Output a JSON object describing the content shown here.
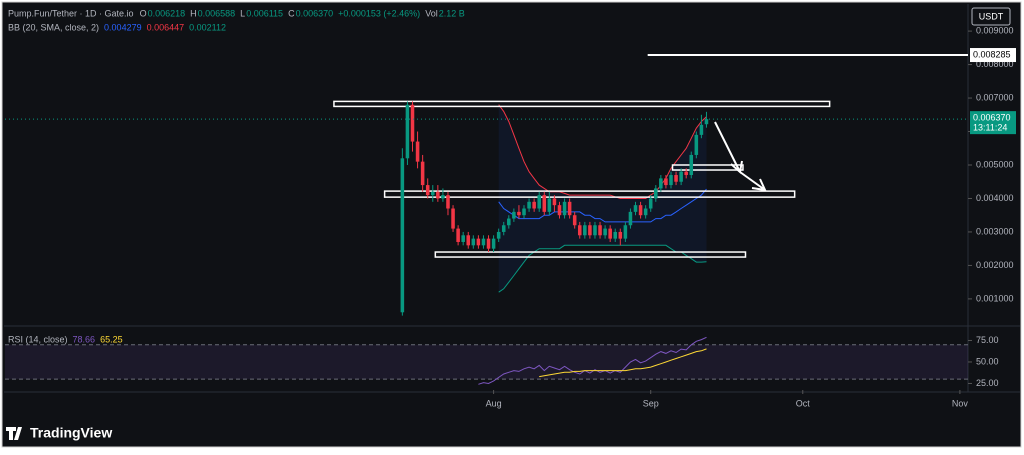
{
  "chart_data": {
    "type": "candlestick",
    "header": {
      "symbol": "Pump.Fun/Tether · 1D · Gate.io",
      "ohlc": [
        {
          "key": "O",
          "value": "0.006218"
        },
        {
          "key": "H",
          "value": "0.006588"
        },
        {
          "key": "L",
          "value": "0.006115"
        },
        {
          "key": "C",
          "value": "0.006370"
        }
      ],
      "change": "+0.000153 (+2.46%)",
      "vol_key": "Vol",
      "vol": "2.12 B",
      "bb_title": "BB (20, SMA, close, 2)",
      "rsi_title": "RSI (14, close)"
    },
    "currency": "USDT",
    "last_price_label": "0.006370",
    "countdown": "13:11:24",
    "brand": "TradingView",
    "colors": {
      "up": "#089981",
      "down": "#f23645",
      "upper": "#f23645",
      "basis": "#2962ff",
      "lower": "#089981",
      "rsi": "#7e57c2",
      "rsi_ma": "#fdd835"
    },
    "xlim": [
      -78.4,
      111.6
    ],
    "xticks": [
      {
        "value": 18,
        "label": "Aug"
      },
      {
        "value": 49,
        "label": "Sep"
      },
      {
        "value": 79,
        "label": "Oct"
      },
      {
        "value": 110,
        "label": "Nov"
      }
    ],
    "ylim": [
      0.00022,
      0.00969
    ],
    "yticks": [
      {
        "value": 0.001,
        "label": "0.001000"
      },
      {
        "value": 0.002,
        "label": "0.002000"
      },
      {
        "value": 0.003,
        "label": "0.003000"
      },
      {
        "value": 0.004,
        "label": "0.004000"
      },
      {
        "value": 0.005,
        "label": "0.005000"
      },
      {
        "value": 0.006,
        "label": "0.006000"
      },
      {
        "value": 0.007,
        "label": "0.007000"
      },
      {
        "value": 0.008,
        "label": "0.008000"
      },
      {
        "value": 0.009,
        "label": "0.009000"
      }
    ],
    "open": [
      0.0006,
      0.0052,
      0.0068,
      0.0057,
      0.0051,
      0.0044,
      0.0041,
      0.0042,
      0.004,
      0.0041,
      0.0037,
      0.0031,
      0.0027,
      0.0029,
      0.0026,
      0.0028,
      0.0026,
      0.0028,
      0.0025,
      0.0028,
      0.003,
      0.0032,
      0.0034,
      0.0036,
      0.0035,
      0.0037,
      0.0039,
      0.0037,
      0.0041,
      0.0036,
      0.004,
      0.0038,
      0.0035,
      0.0039,
      0.0035,
      0.0032,
      0.0029,
      0.0032,
      0.0029,
      0.0032,
      0.0029,
      0.0031,
      0.0028,
      0.003,
      0.0028,
      0.0032,
      0.0036,
      0.0038,
      0.0035,
      0.0037,
      0.004,
      0.0043,
      0.0046,
      0.0044,
      0.0047,
      0.0045,
      0.0048,
      0.0047,
      0.0053,
      0.0059,
      0.006218
    ],
    "high": [
      0.0055,
      0.0069,
      0.0069,
      0.006,
      0.0053,
      0.0046,
      0.0044,
      0.0044,
      0.0043,
      0.0042,
      0.0038,
      0.0032,
      0.003,
      0.003,
      0.0029,
      0.0029,
      0.0029,
      0.0029,
      0.0029,
      0.0031,
      0.0033,
      0.0035,
      0.0037,
      0.0038,
      0.0038,
      0.004,
      0.004,
      0.0042,
      0.0042,
      0.0042,
      0.0041,
      0.0039,
      0.004,
      0.004,
      0.0036,
      0.0033,
      0.0033,
      0.0033,
      0.0033,
      0.0033,
      0.0032,
      0.0032,
      0.0031,
      0.0031,
      0.0033,
      0.0037,
      0.0039,
      0.0039,
      0.0038,
      0.0041,
      0.0044,
      0.0047,
      0.0047,
      0.0048,
      0.0048,
      0.0049,
      0.0049,
      0.0054,
      0.006,
      0.0065,
      0.006588
    ],
    "low": [
      0.0005,
      0.005,
      0.0054,
      0.0049,
      0.0042,
      0.004,
      0.0039,
      0.0039,
      0.0039,
      0.0035,
      0.003,
      0.0026,
      0.0026,
      0.0025,
      0.0025,
      0.0025,
      0.0025,
      0.0024,
      0.0024,
      0.0027,
      0.0029,
      0.0031,
      0.0033,
      0.0034,
      0.0034,
      0.0036,
      0.0036,
      0.0036,
      0.0035,
      0.0035,
      0.0036,
      0.0034,
      0.0034,
      0.0034,
      0.0031,
      0.0028,
      0.0028,
      0.0028,
      0.0028,
      0.0028,
      0.0028,
      0.0027,
      0.0027,
      0.0026,
      0.0027,
      0.0031,
      0.0035,
      0.0034,
      0.0034,
      0.0036,
      0.0039,
      0.0042,
      0.0043,
      0.0043,
      0.0044,
      0.0044,
      0.0046,
      0.0046,
      0.0052,
      0.0058,
      0.006115
    ],
    "close": [
      0.0052,
      0.0068,
      0.0057,
      0.0051,
      0.0044,
      0.0041,
      0.0042,
      0.004,
      0.0041,
      0.0037,
      0.0031,
      0.0027,
      0.0029,
      0.0026,
      0.0028,
      0.0026,
      0.0028,
      0.0025,
      0.0028,
      0.003,
      0.0032,
      0.0034,
      0.0036,
      0.0035,
      0.0037,
      0.0039,
      0.0037,
      0.0041,
      0.0036,
      0.004,
      0.0038,
      0.0035,
      0.0039,
      0.0035,
      0.0032,
      0.0029,
      0.0032,
      0.0029,
      0.0032,
      0.0029,
      0.0031,
      0.0028,
      0.003,
      0.0028,
      0.0032,
      0.0036,
      0.0038,
      0.0035,
      0.0037,
      0.004,
      0.0043,
      0.0046,
      0.0044,
      0.0047,
      0.0045,
      0.0048,
      0.0047,
      0.0053,
      0.0059,
      0.0062,
      0.00637
    ],
    "bands": [
      {
        "key": "upper",
        "values": [
          null,
          null,
          null,
          null,
          null,
          null,
          null,
          null,
          null,
          null,
          null,
          null,
          null,
          null,
          null,
          null,
          null,
          null,
          null,
          0.0068,
          0.0066,
          0.0063,
          0.0059,
          0.0055,
          0.0051,
          0.0048,
          0.0046,
          0.0044,
          0.0043,
          0.0042,
          0.0042,
          0.0042,
          0.00415,
          0.0041,
          0.0041,
          0.0041,
          0.0041,
          0.0041,
          0.0041,
          0.0041,
          0.0041,
          0.0041,
          0.00405,
          0.004,
          0.004,
          0.004,
          0.004,
          0.004,
          0.004,
          0.0041,
          0.0042,
          0.0044,
          0.0046,
          0.0049,
          0.0051,
          0.0053,
          0.0055,
          0.0058,
          0.0061,
          0.0063,
          0.006447
        ]
      },
      {
        "key": "basis",
        "values": [
          null,
          null,
          null,
          null,
          null,
          null,
          null,
          null,
          null,
          null,
          null,
          null,
          null,
          null,
          null,
          null,
          null,
          null,
          null,
          0.0039,
          0.0037,
          0.0036,
          0.0035,
          0.0034,
          0.0034,
          0.0034,
          0.0034,
          0.0034,
          0.0035,
          0.0035,
          0.0036,
          0.0036,
          0.0036,
          0.0036,
          0.0036,
          0.0036,
          0.0035,
          0.0035,
          0.0034,
          0.0034,
          0.0033,
          0.0033,
          0.0033,
          0.0033,
          0.0033,
          0.0033,
          0.0033,
          0.0033,
          0.0033,
          0.0033,
          0.0034,
          0.0034,
          0.0035,
          0.0035,
          0.0036,
          0.0037,
          0.0038,
          0.0039,
          0.004,
          0.0041,
          0.004279
        ]
      },
      {
        "key": "lower",
        "values": [
          null,
          null,
          null,
          null,
          null,
          null,
          null,
          null,
          null,
          null,
          null,
          null,
          null,
          null,
          null,
          null,
          null,
          null,
          null,
          0.0012,
          0.0013,
          0.0015,
          0.0017,
          0.0019,
          0.0021,
          0.0023,
          0.0024,
          0.0025,
          0.0025,
          0.0025,
          0.0025,
          0.0025,
          0.0026,
          0.0026,
          0.0026,
          0.0026,
          0.0026,
          0.0026,
          0.0026,
          0.0026,
          0.0026,
          0.0026,
          0.0026,
          0.0026,
          0.0026,
          0.0026,
          0.0026,
          0.0026,
          0.0026,
          0.0026,
          0.0026,
          0.0026,
          0.0026,
          0.0025,
          0.0024,
          0.0024,
          0.0023,
          0.0022,
          0.0021,
          0.0021,
          0.002112
        ]
      }
    ],
    "bb_labels": [
      "0.004279",
      "0.006447",
      "0.002112"
    ],
    "level": {
      "value": 0.008285,
      "start": 48.4
    },
    "zones": [
      {
        "x": [
          -13.5,
          84.3
        ],
        "y": [
          0.0069,
          0.00675
        ]
      },
      {
        "x": [
          -3.5,
          77.4
        ],
        "y": [
          0.00422,
          0.00404
        ]
      },
      {
        "x": [
          53.3,
          67.2
        ],
        "y": [
          0.005,
          0.00485
        ]
      },
      {
        "x": [
          6.5,
          67.7
        ],
        "y": [
          0.0024,
          0.00225
        ]
      }
    ],
    "rsi": {
      "ylim": [
        17.4,
        89.5
      ],
      "yticks": [
        {
          "value": 25,
          "label": "25.00"
        },
        {
          "value": 50,
          "label": "50.00"
        },
        {
          "value": 75,
          "label": "75.00"
        }
      ],
      "bands": [
        30,
        70
      ],
      "values": [
        null,
        null,
        null,
        null,
        null,
        null,
        null,
        null,
        null,
        null,
        null,
        null,
        null,
        null,
        null,
        24,
        26,
        25,
        28,
        32,
        36,
        38,
        40,
        39,
        42,
        44,
        42,
        46,
        40,
        45,
        43,
        41,
        45,
        41,
        38,
        36,
        40,
        37,
        41,
        38,
        40,
        37,
        40,
        38,
        44,
        50,
        53,
        49,
        51,
        55,
        59,
        62,
        60,
        63,
        61,
        65,
        64,
        70,
        74,
        76,
        78.66
      ],
      "ma": [
        null,
        null,
        null,
        null,
        null,
        null,
        null,
        null,
        null,
        null,
        null,
        null,
        null,
        null,
        null,
        null,
        null,
        null,
        null,
        null,
        null,
        null,
        null,
        null,
        null,
        null,
        null,
        33,
        34,
        35,
        36,
        37,
        38,
        38,
        39,
        39,
        40,
        40,
        40,
        40,
        40,
        40,
        40,
        40,
        40,
        41,
        42,
        42,
        43,
        44,
        46,
        48,
        50,
        52,
        54,
        56,
        58,
        60,
        62,
        63,
        65.25
      ]
    }
  }
}
